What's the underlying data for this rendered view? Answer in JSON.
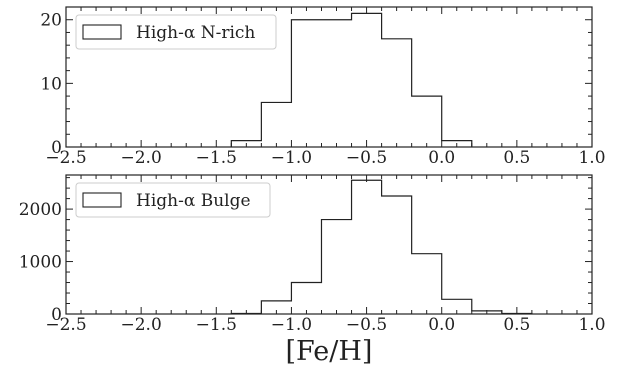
{
  "chart_data": [
    {
      "type": "histogram",
      "legend": "High-α N-rich",
      "legend_loc": "upper left",
      "xlim": [
        -2.5,
        1.0
      ],
      "ylim": [
        0,
        22
      ],
      "xticks": [
        -2.5,
        -2.0,
        -1.5,
        -1.0,
        -0.5,
        0.0,
        0.5,
        1.0
      ],
      "xtick_labels": [
        "−2.5",
        "−2.0",
        "−1.5",
        "−1.0",
        "−0.5",
        "0.0",
        "0.5",
        "1.0"
      ],
      "yticks": [
        0,
        10,
        20
      ],
      "ytick_labels": [
        "0",
        "10",
        "20"
      ],
      "bin_edges": [
        -1.4,
        -1.2,
        -1.0,
        -0.6,
        -0.4,
        -0.2,
        0.0,
        0.2
      ],
      "counts": [
        1,
        7,
        20,
        21,
        17,
        8,
        1
      ]
    },
    {
      "type": "histogram",
      "legend": "High-α Bulge",
      "legend_loc": "upper left",
      "xlim": [
        -2.5,
        1.0
      ],
      "ylim": [
        0,
        2650
      ],
      "xticks": [
        -2.5,
        -2.0,
        -1.5,
        -1.0,
        -0.5,
        0.0,
        0.5,
        1.0
      ],
      "xtick_labels": [
        "−2.5",
        "−2.0",
        "−1.5",
        "−1.0",
        "−0.5",
        "0.0",
        "0.5",
        "1.0"
      ],
      "yticks": [
        0,
        1000,
        2000
      ],
      "ytick_labels": [
        "0",
        "1000",
        "2000"
      ],
      "bin_edges": [
        -1.4,
        -1.2,
        -1.0,
        -0.8,
        -0.6,
        -0.4,
        -0.2,
        0.0,
        0.2,
        0.4,
        0.6
      ],
      "counts": [
        10,
        250,
        600,
        1800,
        2550,
        2250,
        1150,
        280,
        60,
        10
      ],
      "xlabel": "[Fe/H]"
    }
  ]
}
